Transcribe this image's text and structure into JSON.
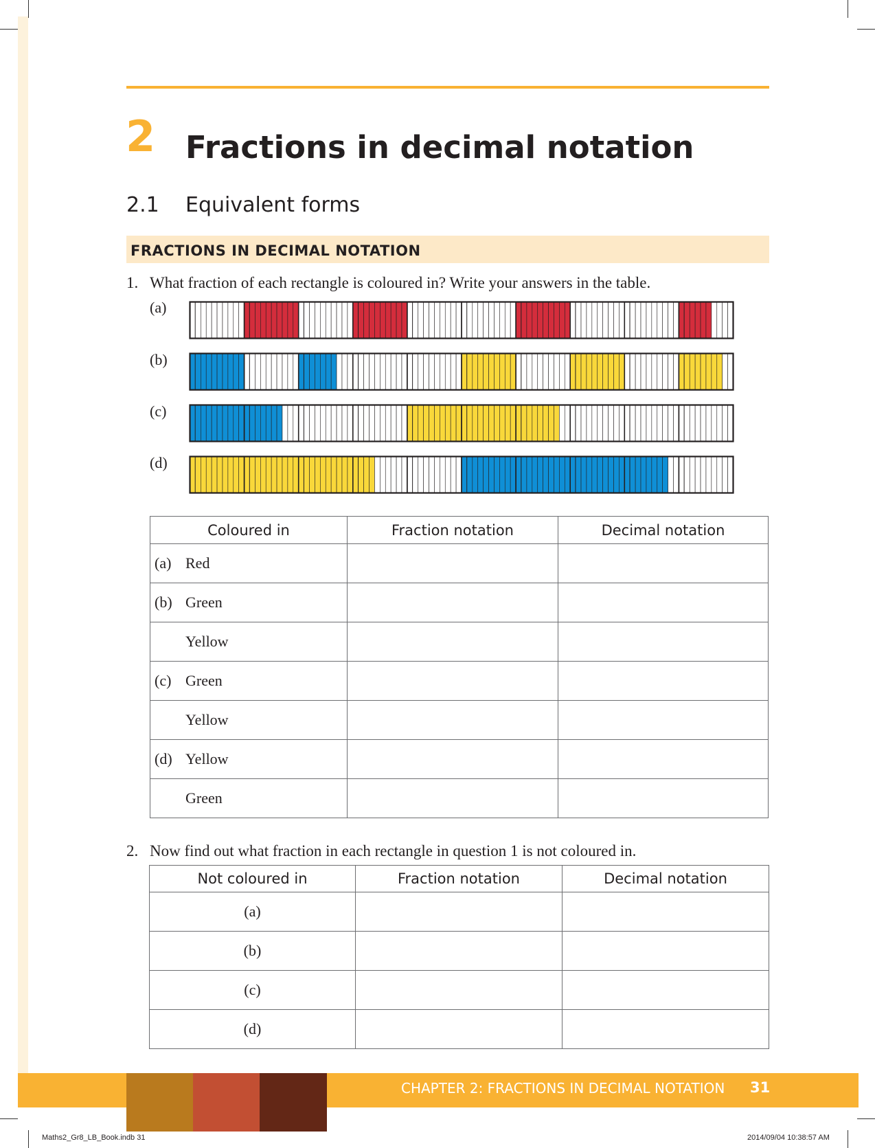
{
  "chapter": {
    "number": "2",
    "title": "Fractions in decimal notation"
  },
  "section": {
    "number": "2.1",
    "title": "Equivalent forms"
  },
  "banner": "FRACTIONS IN DECIMAL NOTATION",
  "q1": {
    "number": "1.",
    "text": "What fraction of each rectangle is coloured in? Write your answers in the table.",
    "strip_labels": [
      "(a)",
      "(b)",
      "(c)",
      "(d)"
    ]
  },
  "colors": {
    "accent": "#f9b233",
    "red": "#d42d3c",
    "blue": "#0f8fd6",
    "yellow": "#f9d83a",
    "banner_bg": "#fde9c8"
  },
  "strips": [
    {
      "label": "(a)",
      "cells": 100,
      "colored": [
        {
          "from": 10,
          "to": 20,
          "color": "red"
        },
        {
          "from": 30,
          "to": 40,
          "color": "red"
        },
        {
          "from": 60,
          "to": 70,
          "color": "red"
        },
        {
          "from": 90,
          "to": 96,
          "color": "red"
        }
      ]
    },
    {
      "label": "(b)",
      "cells": 100,
      "colored": [
        {
          "from": 0,
          "to": 10,
          "color": "blue"
        },
        {
          "from": 20,
          "to": 27,
          "color": "blue"
        },
        {
          "from": 50,
          "to": 60,
          "color": "yellow"
        },
        {
          "from": 70,
          "to": 80,
          "color": "yellow"
        },
        {
          "from": 90,
          "to": 98,
          "color": "yellow"
        }
      ]
    },
    {
      "label": "(c)",
      "cells": 100,
      "colored": [
        {
          "from": 0,
          "to": 17,
          "color": "blue"
        },
        {
          "from": 40,
          "to": 68,
          "color": "yellow"
        }
      ]
    },
    {
      "label": "(d)",
      "cells": 100,
      "colored": [
        {
          "from": 0,
          "to": 34,
          "color": "yellow"
        },
        {
          "from": 50,
          "to": 88,
          "color": "blue"
        }
      ]
    }
  ],
  "table1": {
    "headers": [
      "Coloured in",
      "Fraction notation",
      "Decimal notation"
    ],
    "rows": [
      {
        "prefix": "(a)",
        "label": "Red"
      },
      {
        "prefix": "(b)",
        "label": "Green"
      },
      {
        "prefix": "",
        "label": "Yellow"
      },
      {
        "prefix": "(c)",
        "label": "Green"
      },
      {
        "prefix": "",
        "label": "Yellow"
      },
      {
        "prefix": "(d)",
        "label": "Yellow"
      },
      {
        "prefix": "",
        "label": "Green"
      }
    ]
  },
  "q2": {
    "number": "2.",
    "text": "Now find out what fraction in each rectangle in question 1 is not coloured in."
  },
  "table2": {
    "headers": [
      "Not coloured in",
      "Fraction notation",
      "Decimal notation"
    ],
    "rows": [
      "(a)",
      "(b)",
      "(c)",
      "(d)"
    ]
  },
  "footer": {
    "title": "CHAPTER 2: FRACTIONS IN DECIMAL NOTATION",
    "page": "31"
  },
  "slug": {
    "file": "Maths2_Gr8_LB_Book.indb   31",
    "timestamp": "2014/09/04   10:38:57 AM"
  }
}
